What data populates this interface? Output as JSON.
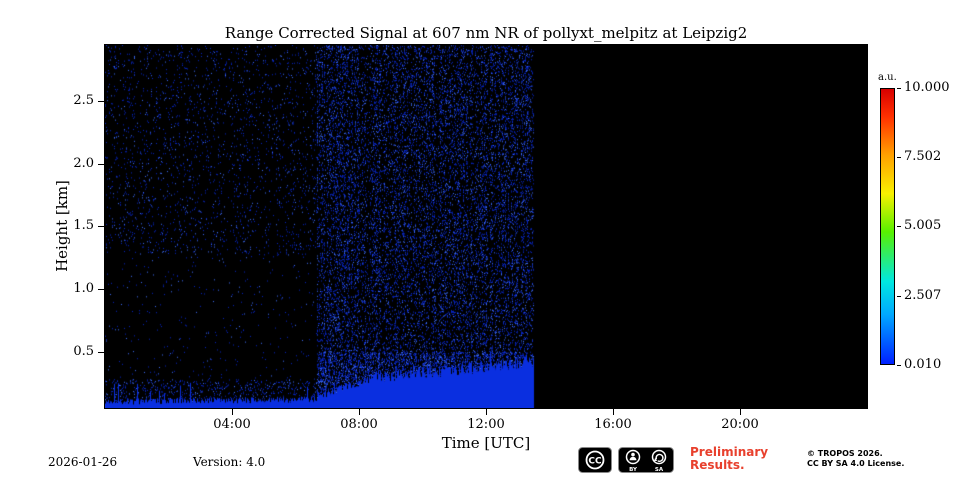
{
  "figure": {
    "date_label": "2026-01-26",
    "version_label": "Version: 4.0",
    "preliminary_line1": "Preliminary",
    "preliminary_line2": "Results.",
    "copyright_line1": "© TROPOS 2026.",
    "copyright_line2": "CC BY SA 4.0 License.",
    "license_badges": {
      "cc": "CC",
      "by": "BY",
      "sa": "SA"
    },
    "colors": {
      "preliminary_red": "#e8402d",
      "text": "#000000"
    }
  },
  "chart_data": {
    "type": "heatmap",
    "title": "Range Corrected Signal at 607 nm NR of pollyxt_melpitz at Leipzig2",
    "xlabel": "Time [UTC]",
    "ylabel": "Height [km]",
    "x_range_hours": [
      0,
      24
    ],
    "y_range_km": [
      0.05,
      2.95
    ],
    "grid": false,
    "x_ticks": [
      {
        "hour": 4,
        "label": "04:00"
      },
      {
        "hour": 8,
        "label": "08:00"
      },
      {
        "hour": 12,
        "label": "12:00"
      },
      {
        "hour": 16,
        "label": "16:00"
      },
      {
        "hour": 20,
        "label": "20:00"
      }
    ],
    "y_ticks": [
      {
        "km": 2.5,
        "label": "2.5"
      },
      {
        "km": 2.0,
        "label": "2.0"
      },
      {
        "km": 1.5,
        "label": "1.5"
      },
      {
        "km": 1.0,
        "label": "1.0"
      },
      {
        "km": 0.5,
        "label": "0.5"
      }
    ],
    "colorbar": {
      "label": "a.u.",
      "colormap": "jet",
      "vmin": 0.01,
      "vmax": 10.0,
      "ticks": [
        "10.000",
        "7.502",
        "5.005",
        "2.507",
        "0.010"
      ],
      "legend_position": "right"
    },
    "data_coverage": {
      "measurement_start_utc": "00:00",
      "measurement_end_utc": "13:30",
      "no_data_after_utc": "13:30"
    },
    "colors": {
      "background": "#000000",
      "speckle_dim": "#0826c8",
      "speckle_bright": "#3f6fff",
      "surface_signal": "#0a2fe0"
    },
    "noise_regions": [
      {
        "t_start": 0.0,
        "t_end": 6.7,
        "h_bottom": 1.28,
        "h_top": 2.95,
        "density": 0.05
      },
      {
        "t_start": 0.0,
        "t_end": 6.7,
        "h_bottom": 0.28,
        "h_top": 1.28,
        "density": 0.012
      },
      {
        "t_start": 0.0,
        "t_end": 6.7,
        "h_bottom": 0.05,
        "h_top": 0.28,
        "density": 0.12
      },
      {
        "t_start": 6.7,
        "t_end": 13.5,
        "h_bottom": 0.5,
        "h_top": 2.95,
        "density": 0.2
      },
      {
        "t_start": 6.7,
        "t_end": 13.5,
        "h_bottom": 0.05,
        "h_top": 0.5,
        "density": 0.45
      }
    ],
    "surface_layer_segments": [
      {
        "t_start": 0.0,
        "t_end": 6.7,
        "h_start": 0.1,
        "h_end": 0.12,
        "jitter_km": 0.05,
        "spike_km": 0.18
      },
      {
        "t_start": 6.7,
        "t_end": 8.5,
        "h_start": 0.14,
        "h_end": 0.3,
        "jitter_km": 0.07,
        "spike_km": 0.12
      },
      {
        "t_start": 8.5,
        "t_end": 13.5,
        "h_start": 0.3,
        "h_end": 0.42,
        "jitter_km": 0.1,
        "spike_km": 0.08
      }
    ]
  }
}
